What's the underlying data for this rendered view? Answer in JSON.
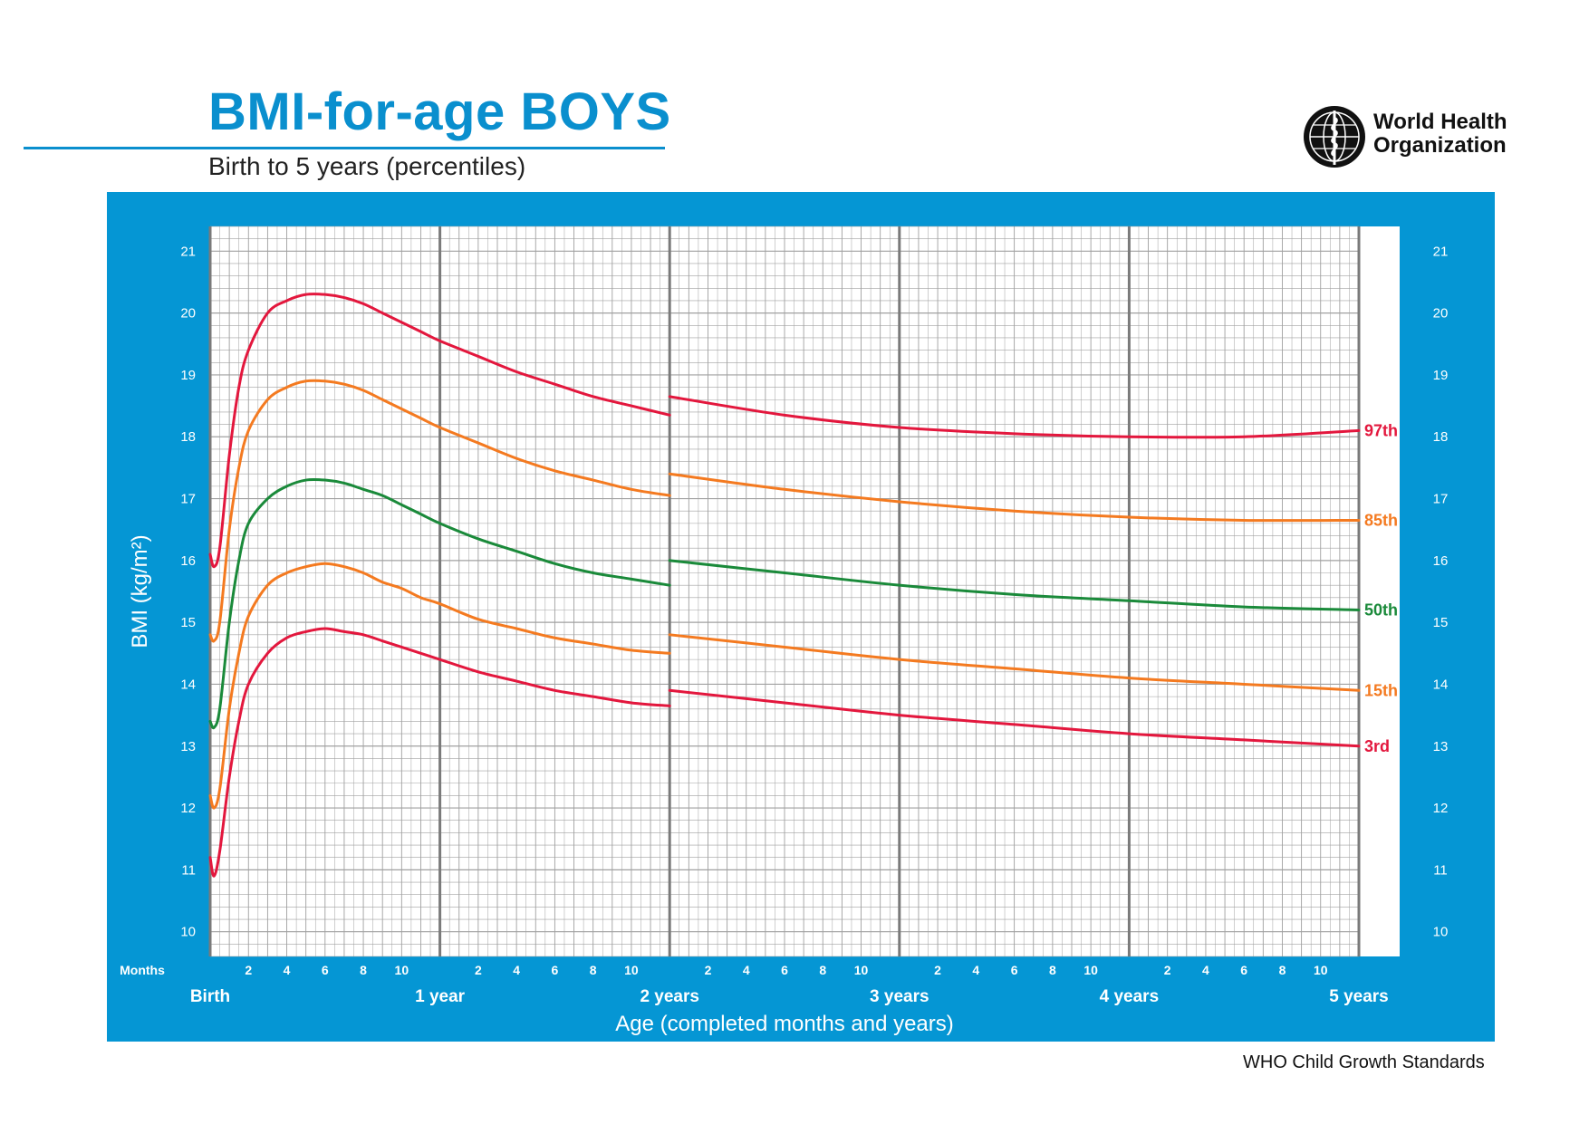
{
  "header": {
    "title": "BMI-for-age BOYS",
    "subtitle": "Birth to 5 years (percentiles)",
    "org_name_line1": "World Health",
    "org_name_line2": "Organization"
  },
  "footer": {
    "note": "WHO Child Growth Standards"
  },
  "colors": {
    "title": "#0a8fce",
    "panel": "#0596d4",
    "grid_minor": "#a0a0a0",
    "grid_major": "#7a7a7a",
    "p97": "#e3173d",
    "p85": "#f47a20",
    "p50": "#1a8a3a",
    "p15": "#f47a20",
    "p3": "#e3173d"
  },
  "chart_data": {
    "type": "line",
    "xlabel": "Age (completed months and years)",
    "ylabel": "BMI (kg/m²)",
    "x_axis_caption": "Months",
    "x_unit": "months",
    "xlim": [
      0,
      60
    ],
    "ylim": [
      9.6,
      21.4
    ],
    "y_ticks": [
      10,
      11,
      12,
      13,
      14,
      15,
      16,
      17,
      18,
      19,
      20,
      21
    ],
    "month_tick_labels": [
      "2",
      "4",
      "6",
      "8",
      "10"
    ],
    "year_labels": [
      {
        "month": 0,
        "label": "Birth"
      },
      {
        "month": 12,
        "label": "1 year"
      },
      {
        "month": 24,
        "label": "2 years"
      },
      {
        "month": 36,
        "label": "3 years"
      },
      {
        "month": 48,
        "label": "4 years"
      },
      {
        "month": 60,
        "label": "5 years"
      }
    ],
    "segment_break_month": 24,
    "series": [
      {
        "name": "97th",
        "color_key": "p97",
        "under2": {
          "x": [
            0,
            0.2,
            0.5,
            1,
            1.5,
            2,
            3,
            4,
            5,
            6,
            7,
            8,
            9,
            10,
            11,
            12,
            14,
            16,
            18,
            20,
            22,
            24
          ],
          "y": [
            16.1,
            15.9,
            16.2,
            17.7,
            18.8,
            19.4,
            20.0,
            20.2,
            20.3,
            20.3,
            20.25,
            20.15,
            20.0,
            19.85,
            19.7,
            19.55,
            19.3,
            19.05,
            18.85,
            18.65,
            18.5,
            18.35
          ]
        },
        "over2": {
          "x": [
            24,
            30,
            36,
            42,
            48,
            54,
            60
          ],
          "y": [
            18.65,
            18.35,
            18.15,
            18.05,
            18.0,
            18.0,
            18.1
          ]
        }
      },
      {
        "name": "85th",
        "color_key": "p85",
        "under2": {
          "x": [
            0,
            0.2,
            0.5,
            1,
            1.5,
            2,
            3,
            4,
            5,
            6,
            7,
            8,
            9,
            10,
            11,
            12,
            14,
            16,
            18,
            20,
            22,
            24
          ],
          "y": [
            14.8,
            14.7,
            15.0,
            16.5,
            17.5,
            18.1,
            18.6,
            18.8,
            18.9,
            18.9,
            18.85,
            18.75,
            18.6,
            18.45,
            18.3,
            18.15,
            17.9,
            17.65,
            17.45,
            17.3,
            17.15,
            17.05
          ]
        },
        "over2": {
          "x": [
            24,
            30,
            36,
            42,
            48,
            54,
            60
          ],
          "y": [
            17.4,
            17.15,
            16.95,
            16.8,
            16.7,
            16.65,
            16.65
          ]
        }
      },
      {
        "name": "50th",
        "color_key": "p50",
        "under2": {
          "x": [
            0,
            0.2,
            0.5,
            1,
            1.5,
            2,
            3,
            4,
            5,
            6,
            7,
            8,
            9,
            10,
            11,
            12,
            14,
            16,
            18,
            20,
            22,
            24
          ],
          "y": [
            13.4,
            13.3,
            13.6,
            15.0,
            16.0,
            16.6,
            17.0,
            17.2,
            17.3,
            17.3,
            17.25,
            17.15,
            17.05,
            16.9,
            16.75,
            16.6,
            16.35,
            16.15,
            15.95,
            15.8,
            15.7,
            15.6
          ]
        },
        "over2": {
          "x": [
            24,
            30,
            36,
            42,
            48,
            54,
            60
          ],
          "y": [
            16.0,
            15.8,
            15.6,
            15.45,
            15.35,
            15.25,
            15.2
          ]
        }
      },
      {
        "name": "15th",
        "color_key": "p15",
        "under2": {
          "x": [
            0,
            0.2,
            0.5,
            1,
            1.5,
            2,
            3,
            4,
            5,
            6,
            7,
            8,
            9,
            10,
            11,
            12,
            14,
            16,
            18,
            20,
            22,
            24
          ],
          "y": [
            12.2,
            12.0,
            12.3,
            13.6,
            14.5,
            15.1,
            15.6,
            15.8,
            15.9,
            15.95,
            15.9,
            15.8,
            15.65,
            15.55,
            15.4,
            15.3,
            15.05,
            14.9,
            14.75,
            14.65,
            14.55,
            14.5
          ]
        },
        "over2": {
          "x": [
            24,
            30,
            36,
            42,
            48,
            54,
            60
          ],
          "y": [
            14.8,
            14.6,
            14.4,
            14.25,
            14.1,
            14.0,
            13.9
          ]
        }
      },
      {
        "name": "3rd",
        "color_key": "p3",
        "under2": {
          "x": [
            0,
            0.2,
            0.5,
            1,
            1.5,
            2,
            3,
            4,
            5,
            6,
            7,
            8,
            9,
            10,
            11,
            12,
            14,
            16,
            18,
            20,
            22,
            24
          ],
          "y": [
            11.2,
            10.9,
            11.3,
            12.5,
            13.4,
            14.0,
            14.5,
            14.75,
            14.85,
            14.9,
            14.85,
            14.8,
            14.7,
            14.6,
            14.5,
            14.4,
            14.2,
            14.05,
            13.9,
            13.8,
            13.7,
            13.65
          ]
        },
        "over2": {
          "x": [
            24,
            30,
            36,
            42,
            48,
            54,
            60
          ],
          "y": [
            13.9,
            13.7,
            13.5,
            13.35,
            13.2,
            13.1,
            13.0
          ]
        }
      }
    ]
  }
}
